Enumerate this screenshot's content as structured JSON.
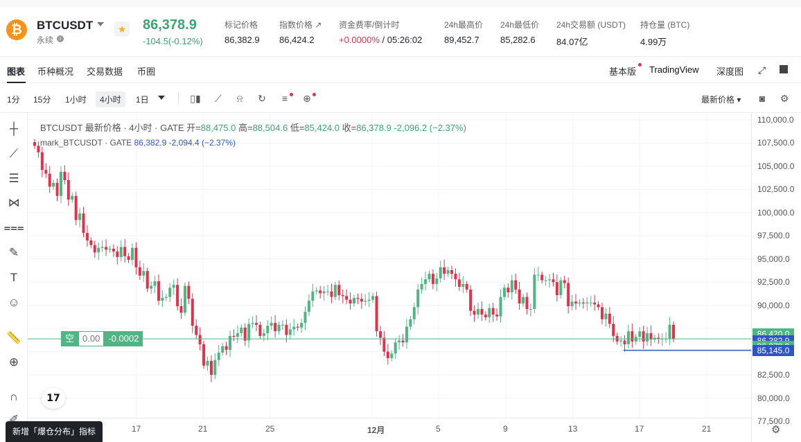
{
  "header": {
    "coin_glyph": "₿",
    "symbol": "BTCUSDT",
    "contract_type": "永续",
    "info_glyph": "i",
    "fav_glyph": "★",
    "last_price": "86,378.9",
    "change": "-104.5(-0.12%)",
    "stats": [
      {
        "label": "标记价格",
        "value": "86,382.9"
      },
      {
        "label": "指数价格 ↗",
        "value": "86,424.2"
      },
      {
        "label": "资金费率/倒计时",
        "value_red": "+0.0000%",
        "value": " / 05:26:02"
      },
      {
        "label": "24h最高价",
        "value": "89,452.7"
      },
      {
        "label": "24h最低价",
        "value": "85,282.6"
      },
      {
        "label": "24h交易额 (USDT)",
        "value": "84.07亿"
      },
      {
        "label": "持仓量 (BTC)",
        "value": "4.99万"
      }
    ]
  },
  "tabs": {
    "left": [
      "图表",
      "币种概况",
      "交易数据",
      "币圈"
    ],
    "right": [
      "基本版",
      "TradingView",
      "深度图"
    ]
  },
  "toolbar": {
    "timeframes": [
      "1分",
      "15分",
      "1小时",
      "4小时",
      "1日"
    ],
    "active_timeframe": "4小时",
    "price_type": "最新价格 ▾"
  },
  "legend": {
    "main_title": "BTCUSDT 最新价格 · 4小时 · GATE",
    "open_label": "开=",
    "open": "88,475.0",
    "high_label": "高=",
    "high": "88,504.6",
    "low_label": "低=",
    "low": "85,424.0",
    "close_label": "收=",
    "close": "86,378.9",
    "delta": "-2,096.2 (−2.37%)",
    "mark_title": "mark_BTCUSDT · GATE",
    "mark_value": "86,382.9 -2,094.4 (−2.37%)"
  },
  "position": {
    "side": "空",
    "qty": "0.00",
    "pnl": "-0.0002"
  },
  "tv_logo": "17",
  "price_axis": {
    "ticks": [
      "110,000.0",
      "107,500.0",
      "105,000.0",
      "102,500.0",
      "100,000.0",
      "97,500.0",
      "95,000.0",
      "92,500.0",
      "90,000.0",
      "82,500.0",
      "80,000.0",
      "77,500.0"
    ],
    "tags": [
      {
        "value": "86,420.0",
        "color": "#4fb583"
      },
      {
        "value": "86,382.9",
        "color": "#2c56c8"
      },
      {
        "value": "86,378.9",
        "color": "#4fb583"
      },
      {
        "value": "85,145.0",
        "color": "#2c56c8"
      }
    ]
  },
  "time_axis": [
    "17",
    "21",
    "25",
    "12月",
    "5",
    "9",
    "13",
    "17",
    "21"
  ],
  "toast": "新增「爆仓分布」指标",
  "chart_data": {
    "type": "candlestick",
    "y_min": 77500,
    "y_max": 110000,
    "up_color": "#4fb583",
    "down_color": "#e2314a",
    "close_series": [
      107200,
      106500,
      104600,
      104200,
      102800,
      103200,
      101800,
      104400,
      103500,
      101400,
      101800,
      99200,
      99900,
      97800,
      97000,
      96500,
      95700,
      96200,
      96300,
      96000,
      96100,
      95800,
      95200,
      96300,
      95300,
      94900,
      96200,
      94100,
      93200,
      93700,
      91800,
      92100,
      92600,
      90500,
      90800,
      90900,
      91900,
      92200,
      89900,
      89200,
      92100,
      90700,
      87800,
      86800,
      85800,
      83500,
      84000,
      82500,
      84100,
      84900,
      85600,
      85200,
      86700,
      86600,
      87000,
      87600,
      86200,
      88000,
      88100,
      87900,
      86700,
      87000,
      87800,
      88100,
      87200,
      87900,
      87900,
      86800,
      87400,
      87700,
      87600,
      88100,
      89300,
      90500,
      91500,
      91600,
      91300,
      91500,
      91500,
      90900,
      92200,
      91100,
      91000,
      90600,
      90200,
      90800,
      90700,
      90400,
      90500,
      90600,
      91000,
      87200,
      86500,
      85000,
      84300,
      84800,
      86000,
      86200,
      86000,
      87700,
      88500,
      89800,
      91700,
      92300,
      92800,
      93400,
      92300,
      92900,
      94100,
      93400,
      93800,
      93400,
      92800,
      92000,
      92300,
      91700,
      89400,
      89000,
      89600,
      89000,
      88700,
      89700,
      89000,
      88800,
      90900,
      91900,
      91400,
      92700,
      91700,
      90200,
      90900,
      89600,
      89600,
      93300,
      93300,
      92700,
      92700,
      92800,
      92500,
      91100,
      92700,
      92400,
      89900,
      90400,
      90200,
      90300,
      90200,
      90300,
      90300,
      90100,
      89800,
      88500,
      89100,
      88000,
      86700,
      86100,
      86200,
      85800,
      87200,
      86100,
      86600,
      87200,
      86100,
      87000,
      86300,
      86500,
      86400,
      86400,
      86400,
      87900,
      86378.9
    ]
  }
}
